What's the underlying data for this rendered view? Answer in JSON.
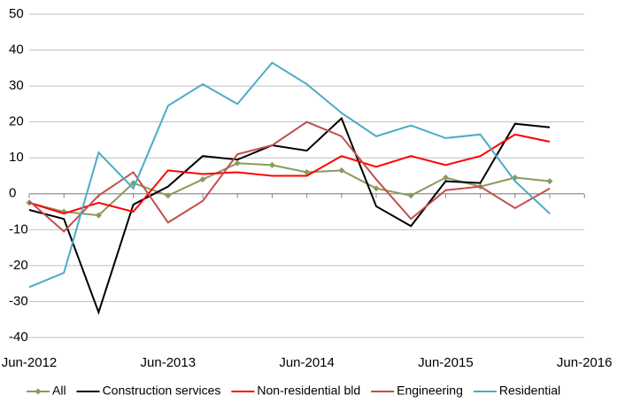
{
  "chart_data": {
    "type": "line",
    "categories": [
      "Jun-2012",
      null,
      null,
      null,
      "Jun-2013",
      null,
      null,
      null,
      "Jun-2014",
      null,
      null,
      null,
      "Jun-2015",
      null,
      null,
      null,
      "Jun-2016"
    ],
    "series": [
      {
        "name": "All",
        "color": "#8a9a5b",
        "marker": "diamond",
        "values": [
          -2.5,
          -5,
          -6,
          3,
          -0.5,
          4,
          8.5,
          8,
          6,
          6.5,
          1.5,
          -0.5,
          4.5,
          2,
          4.5,
          3.5,
          null
        ]
      },
      {
        "name": "Construction services",
        "color": "#000000",
        "values": [
          -4.5,
          -7,
          -33,
          -3,
          2,
          10.5,
          9.5,
          13.5,
          12,
          21,
          -3.5,
          -9,
          3.5,
          3,
          19.5,
          18.5,
          null
        ]
      },
      {
        "name": "Non-residential bld",
        "color": "#ff0000",
        "values": [
          -2.5,
          -5.5,
          -2.5,
          -5,
          6.5,
          5.5,
          6,
          5,
          5,
          10.5,
          7.5,
          10.5,
          8,
          10.5,
          16.5,
          14.5,
          null
        ]
      },
      {
        "name": "Engineering",
        "color": "#c0504d",
        "values": [
          -2,
          -10.5,
          -0.5,
          6,
          -8,
          -2,
          11,
          13.5,
          20,
          16,
          4,
          -7,
          1,
          2,
          -4,
          1.5,
          null
        ]
      },
      {
        "name": "Residential",
        "color": "#4bacc6",
        "values": [
          -26,
          -22,
          11.5,
          1.5,
          24.5,
          30.5,
          25,
          36.5,
          30.5,
          22.5,
          16,
          19,
          15.5,
          16.5,
          3.5,
          -5.5,
          null
        ]
      }
    ],
    "ylim": [
      -40,
      50
    ],
    "yticks": [
      -40,
      -30,
      -20,
      -10,
      0,
      10,
      20,
      30,
      40,
      50
    ],
    "grid": true,
    "legend": "bottom"
  }
}
